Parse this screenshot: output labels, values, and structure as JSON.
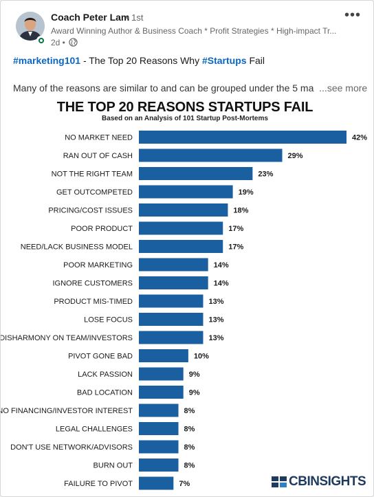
{
  "post": {
    "author_name": "Coach Peter Lam",
    "connection_degree": "• 1st",
    "headline": "Award Winning Author & Business Coach * Profit Strategies * High-impact Tr...",
    "time_ago": "2d •",
    "hashtag1": "#marketing101",
    "text_mid": " - The Top 20 Reasons Why ",
    "hashtag2": "#Startups",
    "text_end": " Fail",
    "body_text": "Many of the reasons are similar to and can be grouped under the 5 ma",
    "see_more": "...see more",
    "more_menu": "•••",
    "icons": {
      "avatar": "profile-photo",
      "globe": "globe-icon",
      "more": "more-options-icon"
    }
  },
  "chart_data": {
    "type": "bar",
    "orientation": "horizontal",
    "title": "THE TOP 20 REASONS STARTUPS FAIL",
    "subtitle": "Based on an Analysis of 101 Startup Post-Mortems",
    "categories": [
      "NO MARKET NEED",
      "RAN OUT OF CASH",
      "NOT THE RIGHT TEAM",
      "GET OUTCOMPETED",
      "PRICING/COST ISSUES",
      "POOR PRODUCT",
      "NEED/LACK BUSINESS MODEL",
      "POOR MARKETING",
      "IGNORE CUSTOMERS",
      "PRODUCT MIS-TIMED",
      "LOSE FOCUS",
      "DISHARMONY ON TEAM/INVESTORS",
      "PIVOT GONE BAD",
      "LACK PASSION",
      "BAD LOCATION",
      "NO FINANCING/INVESTOR INTEREST",
      "LEGAL CHALLENGES",
      "DON'T USE NETWORK/ADVISORS",
      "BURN OUT",
      "FAILURE TO PIVOT"
    ],
    "values": [
      42,
      29,
      23,
      19,
      18,
      17,
      17,
      14,
      14,
      13,
      13,
      13,
      10,
      9,
      9,
      8,
      8,
      8,
      8,
      7
    ],
    "value_suffix": "%",
    "xlim": [
      0,
      42
    ],
    "bar_color": "#1a5fa0",
    "grid": false,
    "brand": "CBINSIGHTS"
  }
}
